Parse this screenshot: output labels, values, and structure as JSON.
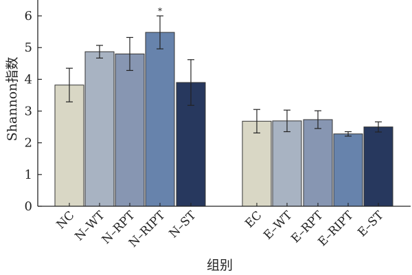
{
  "chart_data": {
    "type": "bar",
    "ylabel": "Shannon指数",
    "xlabel": "组别",
    "ylim": [
      0,
      6.5
    ],
    "yticks": [
      0,
      1,
      2,
      3,
      4,
      5,
      6
    ],
    "grid": false,
    "legend": "none",
    "categories": [
      "NC",
      "N-WT",
      "N-RPT",
      "N-RIPT",
      "N-ST",
      "EC",
      "E-WT",
      "E-RPT",
      "E-RIPT",
      "E-ST"
    ],
    "values": [
      3.82,
      4.87,
      4.8,
      5.48,
      3.9,
      2.68,
      2.69,
      2.73,
      2.28,
      2.5
    ],
    "errors": [
      0.53,
      0.2,
      0.52,
      0.52,
      0.72,
      0.37,
      0.34,
      0.28,
      0.07,
      0.16
    ],
    "annotations": [
      {
        "category": "N-RIPT",
        "text": "*"
      }
    ],
    "colors": [
      "#d9d7c5",
      "#a8b3c2",
      "#8796b2",
      "#6783ac",
      "#27385e",
      "#d9d7c5",
      "#a8b3c2",
      "#8796b2",
      "#6783ac",
      "#27385e"
    ]
  }
}
